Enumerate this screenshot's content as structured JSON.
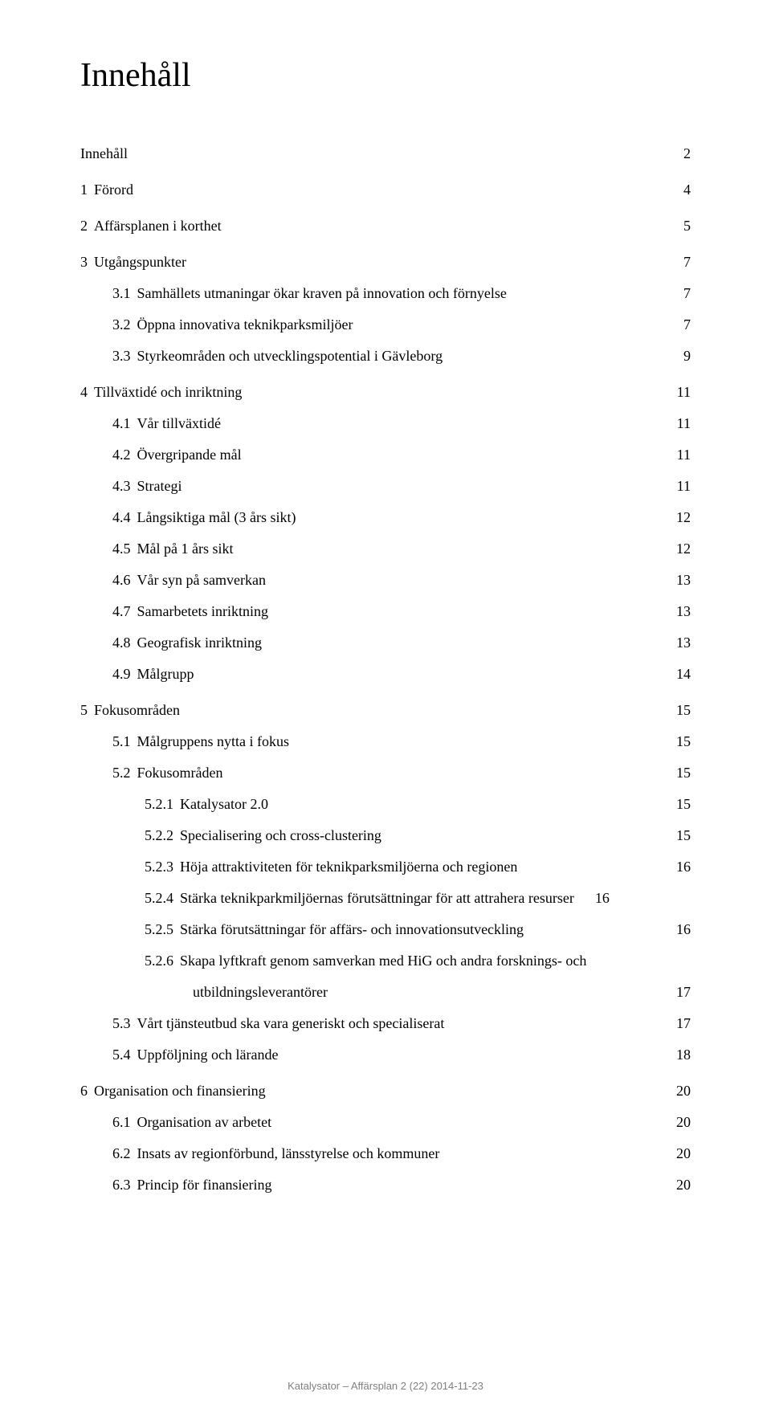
{
  "title": "Innehåll",
  "footer": "Katalysator – Affärsplan  2 (22) 2014-11-23",
  "colors": {
    "text": "#000000",
    "footer": "#808080",
    "background": "#ffffff"
  },
  "typography": {
    "title_fontsize": 42,
    "body_fontsize": 18,
    "footer_fontsize": 13,
    "body_family": "Georgia/serif",
    "footer_family": "Arial/sans-serif"
  },
  "toc": [
    {
      "level": 0,
      "num": "",
      "label": "Innehåll",
      "page": "2",
      "spaced": false
    },
    {
      "level": 0,
      "num": "1",
      "label": "Förord",
      "page": "4",
      "spaced": true
    },
    {
      "level": 0,
      "num": "2",
      "label": "Affärsplanen i korthet",
      "page": "5",
      "spaced": true
    },
    {
      "level": 0,
      "num": "3",
      "label": "Utgångspunkter",
      "page": "7",
      "spaced": true
    },
    {
      "level": 1,
      "num": "3.1",
      "label": "Samhällets utmaningar ökar kraven på innovation och förnyelse",
      "page": "7",
      "spaced": false
    },
    {
      "level": 1,
      "num": "3.2",
      "label": "Öppna innovativa teknikparksmiljöer",
      "page": "7",
      "spaced": false
    },
    {
      "level": 1,
      "num": "3.3",
      "label": "Styrkeområden och utvecklingspotential i Gävleborg",
      "page": "9",
      "spaced": false
    },
    {
      "level": 0,
      "num": "4",
      "label": "Tillväxtidé och inriktning",
      "page": "11",
      "spaced": true
    },
    {
      "level": 1,
      "num": "4.1",
      "label": "Vår tillväxtidé",
      "page": "11",
      "spaced": false
    },
    {
      "level": 1,
      "num": "4.2",
      "label": "Övergripande mål",
      "page": "11",
      "spaced": false
    },
    {
      "level": 1,
      "num": "4.3",
      "label": "Strategi",
      "page": "11",
      "spaced": false
    },
    {
      "level": 1,
      "num": "4.4",
      "label": "Långsiktiga mål (3 års sikt)",
      "page": "12",
      "spaced": false
    },
    {
      "level": 1,
      "num": "4.5",
      "label": "Mål på 1 års sikt",
      "page": "12",
      "spaced": false
    },
    {
      "level": 1,
      "num": "4.6",
      "label": "Vår syn på samverkan",
      "page": "13",
      "spaced": false
    },
    {
      "level": 1,
      "num": "4.7",
      "label": "Samarbetets inriktning",
      "page": "13",
      "spaced": false
    },
    {
      "level": 1,
      "num": "4.8",
      "label": "Geografisk inriktning",
      "page": "13",
      "spaced": false
    },
    {
      "level": 1,
      "num": "4.9",
      "label": "Målgrupp",
      "page": "14",
      "spaced": false
    },
    {
      "level": 0,
      "num": "5",
      "label": "Fokusområden",
      "page": "15",
      "spaced": true
    },
    {
      "level": 1,
      "num": "5.1",
      "label": "Målgruppens nytta i fokus",
      "page": "15",
      "spaced": false
    },
    {
      "level": 1,
      "num": "5.2",
      "label": "Fokusområden",
      "page": "15",
      "spaced": false
    },
    {
      "level": 2,
      "num": "5.2.1",
      "label": "Katalysator 2.0",
      "page": "15",
      "spaced": false
    },
    {
      "level": 2,
      "num": "5.2.2",
      "label": "Specialisering och cross-clustering",
      "page": "15",
      "spaced": false
    },
    {
      "level": 2,
      "num": "5.2.3",
      "label": "Höja attraktiviteten för teknikparksmiljöerna och regionen",
      "page": "16",
      "spaced": false
    },
    {
      "level": 2,
      "num": "5.2.4",
      "label": "Stärka teknikparkmiljöernas förutsättningar för att attrahera resurser",
      "page": "16",
      "spaced": false,
      "tight": true
    },
    {
      "level": 2,
      "num": "5.2.5",
      "label": "Stärka förutsättningar för affärs- och innovationsutveckling",
      "page": "16",
      "spaced": false
    },
    {
      "level": 2,
      "num": "5.2.6",
      "label": "Skapa lyftkraft genom samverkan med HiG och andra forsknings- och",
      "page": "",
      "spaced": false,
      "wrap_start": true
    },
    {
      "level": 2,
      "num": "",
      "label": "utbildningsleverantörer",
      "page": "17",
      "spaced": false,
      "wrap_cont": true
    },
    {
      "level": 1,
      "num": "5.3",
      "label": "Vårt tjänsteutbud ska vara generiskt och specialiserat",
      "page": "17",
      "spaced": false
    },
    {
      "level": 1,
      "num": "5.4",
      "label": "Uppföljning och lärande",
      "page": "18",
      "spaced": false
    },
    {
      "level": 0,
      "num": "6",
      "label": "Organisation och finansiering",
      "page": "20",
      "spaced": true
    },
    {
      "level": 1,
      "num": "6.1",
      "label": "Organisation av arbetet",
      "page": "20",
      "spaced": false
    },
    {
      "level": 1,
      "num": "6.2",
      "label": "Insats av regionförbund, länsstyrelse och kommuner",
      "page": "20",
      "spaced": false
    },
    {
      "level": 1,
      "num": "6.3",
      "label": "Princip för finansiering",
      "page": "20",
      "spaced": false
    }
  ]
}
